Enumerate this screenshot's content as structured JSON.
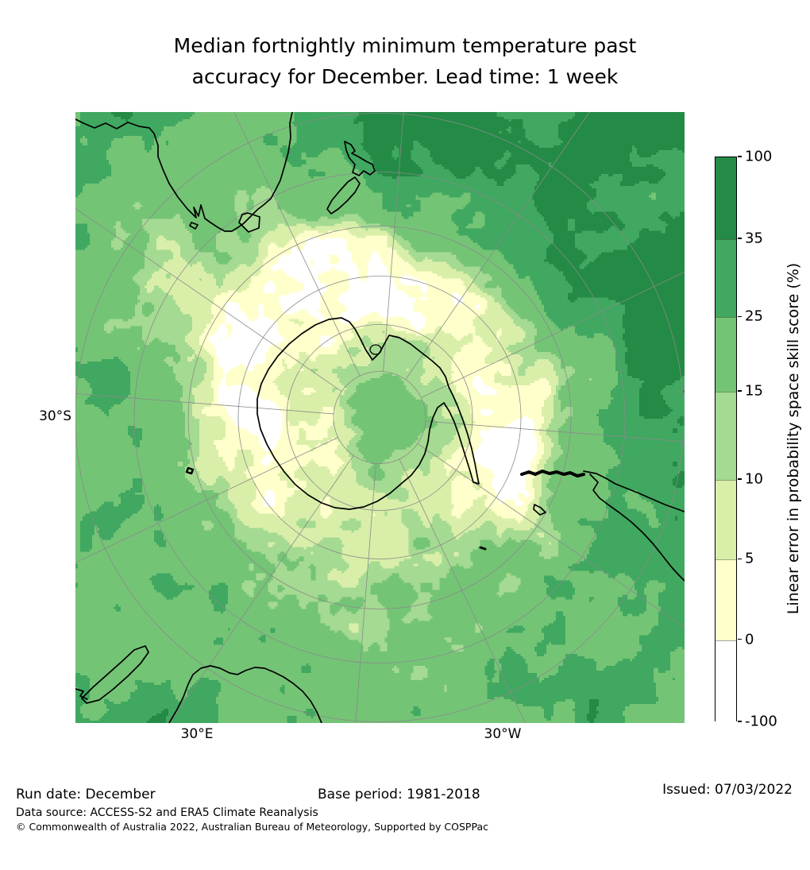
{
  "title": {
    "line1": "Median fortnightly minimum temperature past",
    "line2": "accuracy for December. Lead time: 1 week"
  },
  "axis": {
    "lat": "30°S",
    "lon_e": "30°E",
    "lon_w": "30°W"
  },
  "colorbar": {
    "label": "Linear error in probability space skill score (%)",
    "ticks": [
      "100",
      "35",
      "25",
      "15",
      "10",
      "5",
      "0",
      "-100"
    ],
    "segment_colors_top_to_bottom": [
      "#238b45",
      "#40a860",
      "#74c476",
      "#a4da91",
      "#d9efa9",
      "#ffffcc",
      "#ffffff"
    ]
  },
  "footer": {
    "run_date": "Run date: December",
    "base_period": "Base period: 1981-2018",
    "issued": "Issued: 07/03/2022",
    "data_source": "Data source: ACCESS-S2 and ERA5 Climate Reanalysis",
    "copyright": "© Commonwealth of Australia 2022, Australian Bureau of Meteorology, Supported by COSPPac"
  },
  "chart_data": {
    "type": "heatmap",
    "title": "Median fortnightly minimum temperature past accuracy for December. Lead time: 1 week",
    "projection": "South polar stereographic map of the Southern Hemisphere (Antarctica centred)",
    "colorbar_label": "Linear error in probability space skill score (%)",
    "levels": [
      -100,
      0,
      5,
      10,
      15,
      25,
      35,
      100
    ],
    "level_colors": [
      "#ffffff",
      "#ffffcc",
      "#d9efa9",
      "#a4da91",
      "#74c476",
      "#40a860",
      "#238b45"
    ],
    "x_tick_labels": [
      "30°E",
      "30°W"
    ],
    "y_tick_labels": [
      "30°S"
    ],
    "graticule": {
      "latitude_circles_deg_S": [
        80,
        70,
        60,
        50,
        40,
        30
      ],
      "meridians_every_deg": 30
    },
    "visible_landmasses": [
      "Antarctica (centre)",
      "Australia with Tasmania (top left)",
      "New Zealand (top centre)",
      "southern South America (right)",
      "Madagascar and South Africa (bottom left)"
    ],
    "regions_summary": [
      {
        "skill": "35-100 (darkest green)",
        "where": "subtropical oceans in upper-right quadrant, east of New Zealand and around southern South America"
      },
      {
        "skill": "15-35 (mid greens)",
        "where": "most of the mid-latitude Southern Ocean"
      },
      {
        "skill": "0-10 (pale yellow-greens)",
        "where": "ring along the Antarctic coastline, parts of the Antarctic interior, streaks south of Australia and near South Africa"
      },
      {
        "skill": "below 0 (white)",
        "where": "scattered patches at the Antarctic coast and interior"
      }
    ]
  }
}
